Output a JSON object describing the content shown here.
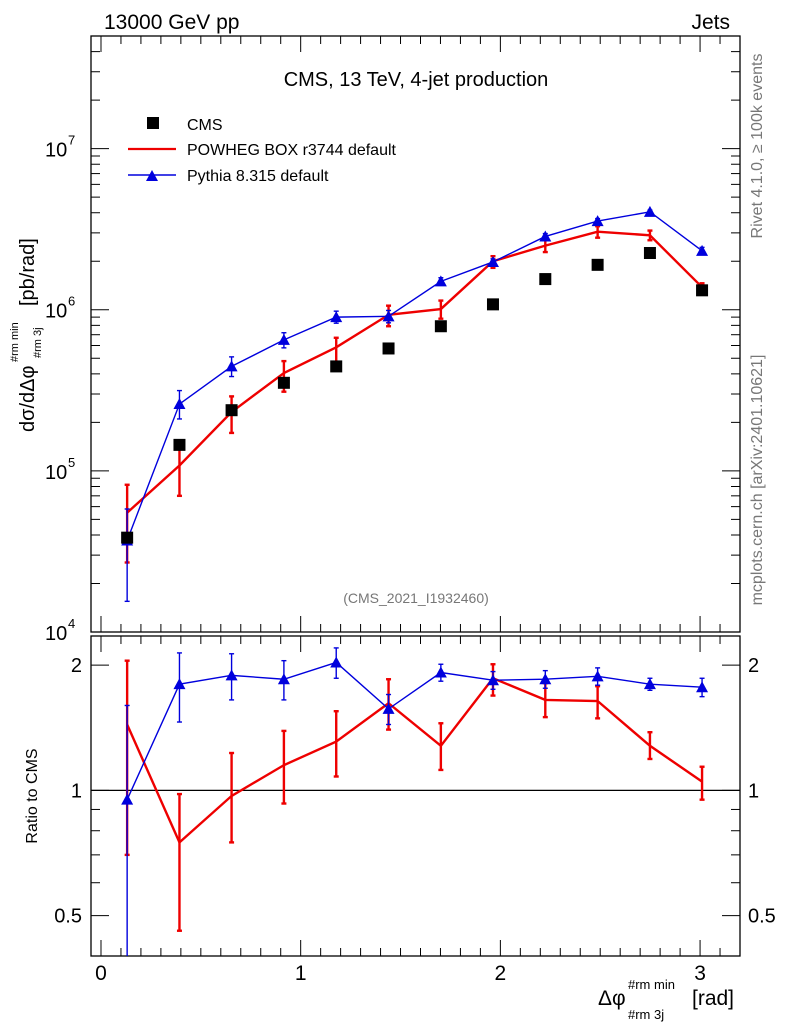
{
  "header": {
    "left": "13000 GeV pp",
    "right": "Jets"
  },
  "side_text": {
    "upper": "Rivet 4.1.0, ≥ 100k events",
    "lower": "mcplots.cern.ch [arXiv:2401.10621]"
  },
  "chart_data": [
    {
      "type": "scatter",
      "panel": "main",
      "title": "CMS, 13 TeV, 4-jet production",
      "analysis_label": "(CMS_2021_I1932460)",
      "ylabel": {
        "main": "dσ/dΔφ",
        "sup": "#rm min",
        "sub": "#rm 3j",
        "unit": "[pb/rad]"
      },
      "yscale": "log",
      "ylim": [
        10000,
        50000000
      ],
      "xlim": [
        -0.05,
        3.2
      ],
      "ytick_labels": [
        {
          "base": "10",
          "exp": "4",
          "value": 10000
        },
        {
          "base": "10",
          "exp": "5",
          "value": 100000
        },
        {
          "base": "10",
          "exp": "6",
          "value": 1000000
        },
        {
          "base": "10",
          "exp": "7",
          "value": 10000000
        }
      ],
      "legend_position": "top-left",
      "x": [
        0.131,
        0.393,
        0.654,
        0.916,
        1.178,
        1.44,
        1.702,
        1.963,
        2.225,
        2.487,
        2.749,
        3.01
      ],
      "series": [
        {
          "name": "CMS",
          "style": "markers",
          "color": "#000000",
          "values": [
            38500,
            145000,
            238000,
            352000,
            445000,
            575000,
            790000,
            1080000,
            1550000,
            1900000,
            2250000,
            1320000
          ]
        },
        {
          "name": "POWHEG BOX r3744 default",
          "style": "line",
          "color": "#ee0000",
          "values": [
            55000,
            108000,
            232000,
            405000,
            585000,
            930000,
            1010000,
            2000000,
            2500000,
            3050000,
            2900000,
            1380000
          ],
          "err_low": [
            27000,
            70000,
            172000,
            310000,
            465000,
            790000,
            880000,
            1820000,
            2280000,
            2800000,
            2700000,
            1300000
          ],
          "err_high": [
            82000,
            140000,
            290000,
            480000,
            670000,
            1060000,
            1140000,
            2150000,
            2720000,
            3300000,
            3100000,
            1460000
          ]
        },
        {
          "name": "Pythia 8.315 default",
          "style": "line+triangles",
          "color": "#0000dd",
          "values": [
            37000,
            260000,
            445000,
            650000,
            900000,
            910000,
            1500000,
            1980000,
            2850000,
            3550000,
            4050000,
            2320000
          ],
          "err_low": [
            15500,
            210000,
            385000,
            580000,
            825000,
            830000,
            1420000,
            1890000,
            2730000,
            3420000,
            3950000,
            2200000
          ],
          "err_high": [
            58000,
            315000,
            510000,
            720000,
            980000,
            990000,
            1580000,
            2070000,
            2970000,
            3680000,
            4150000,
            2440000
          ]
        }
      ]
    },
    {
      "type": "line",
      "panel": "ratio",
      "ylabel": "Ratio to CMS",
      "xlabel": {
        "main": "Δφ",
        "sup": "#rm min",
        "sub": "#rm 3j",
        "unit": "[rad]"
      },
      "yscale": "log",
      "ylim": [
        0.4,
        2.35
      ],
      "xlim": [
        -0.05,
        3.2
      ],
      "xtick_labels": [
        "0",
        "1",
        "2",
        "3"
      ],
      "ytick_labels": [
        "0.5",
        "1",
        "2"
      ],
      "x": [
        0.131,
        0.393,
        0.654,
        0.916,
        1.178,
        1.44,
        1.702,
        1.963,
        2.225,
        2.487,
        2.749,
        3.01
      ],
      "reference_line": 1,
      "series": [
        {
          "name": "POWHEG BOX r3744 default",
          "color": "#ee0000",
          "values": [
            1.44,
            0.75,
            0.97,
            1.15,
            1.31,
            1.62,
            1.28,
            1.86,
            1.65,
            1.64,
            1.28,
            1.05
          ],
          "err_low": [
            0.7,
            0.46,
            0.75,
            0.93,
            1.08,
            1.4,
            1.12,
            1.69,
            1.5,
            1.49,
            1.19,
            0.95
          ],
          "err_high": [
            2.05,
            0.98,
            1.23,
            1.39,
            1.55,
            1.85,
            1.45,
            2.01,
            1.81,
            1.78,
            1.38,
            1.14
          ]
        },
        {
          "name": "Pythia 8.315 default",
          "color": "#0000dd",
          "values": [
            0.95,
            1.8,
            1.89,
            1.85,
            2.03,
            1.57,
            1.92,
            1.84,
            1.85,
            1.88,
            1.8,
            1.77
          ],
          "err_low": [
            0.3,
            1.46,
            1.65,
            1.65,
            1.86,
            1.44,
            1.83,
            1.75,
            1.76,
            1.79,
            1.74,
            1.68
          ],
          "err_high": [
            1.6,
            2.14,
            2.13,
            2.05,
            2.2,
            1.7,
            2.01,
            1.93,
            1.94,
            1.97,
            1.86,
            1.86
          ]
        }
      ]
    }
  ]
}
